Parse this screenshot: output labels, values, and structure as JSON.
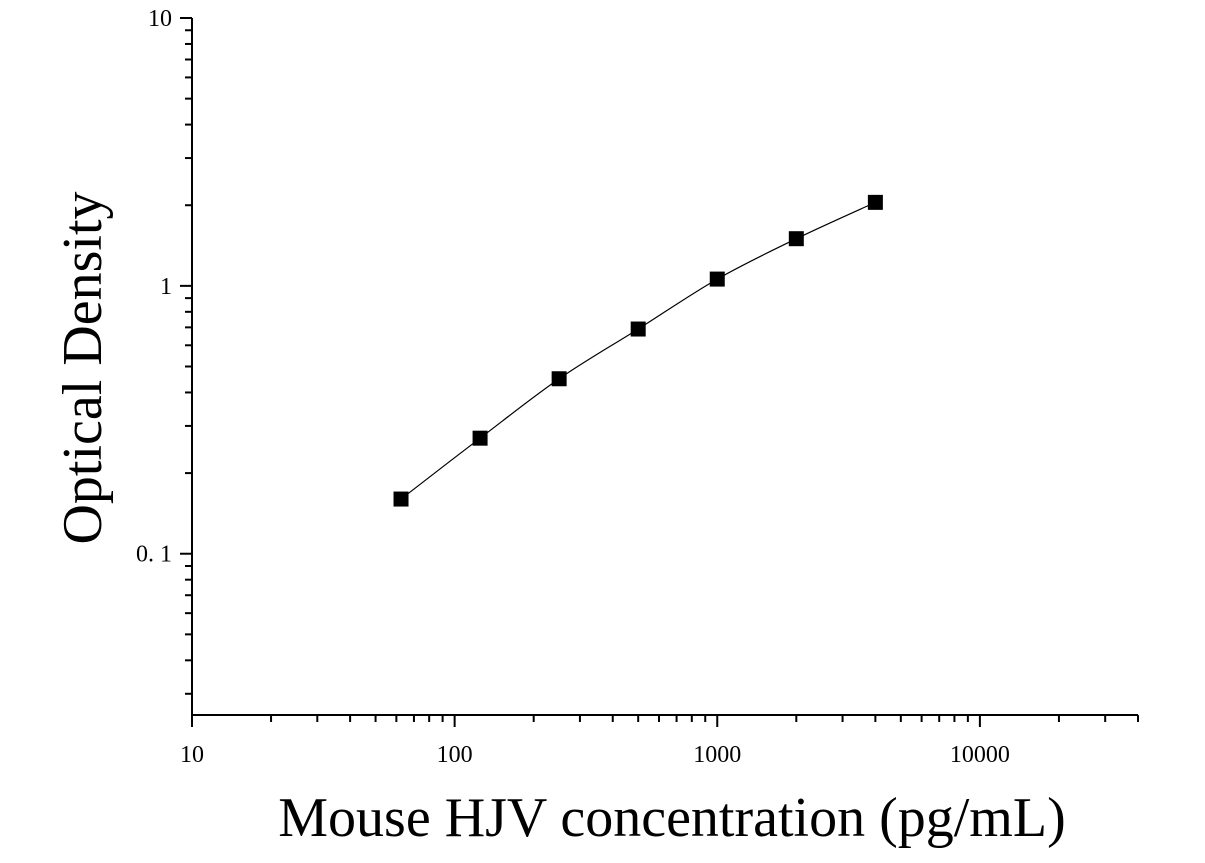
{
  "chart_data": {
    "type": "scatter",
    "title": "",
    "xlabel": "Mouse HJV concentration (pg/mL)",
    "ylabel": "Optical Density",
    "xscale": "log",
    "yscale": "log",
    "xlim": [
      10,
      40000
    ],
    "ylim": [
      0.025,
      10
    ],
    "x_ticks": [
      10,
      100,
      1000,
      10000
    ],
    "x_tick_labels": [
      "10",
      "100",
      "1000",
      "10000"
    ],
    "y_ticks": [
      0.1,
      1,
      10
    ],
    "y_tick_labels": [
      "0. 1",
      "1",
      "10"
    ],
    "grid": false,
    "legend": "none",
    "marker": "square",
    "color": "#000000",
    "series": [
      {
        "x": [
          62.5,
          125,
          250,
          500,
          1000,
          2000,
          4000
        ],
        "y": [
          0.16,
          0.27,
          0.45,
          0.69,
          1.06,
          1.5,
          2.05
        ],
        "fit": "smooth-curve"
      }
    ]
  }
}
